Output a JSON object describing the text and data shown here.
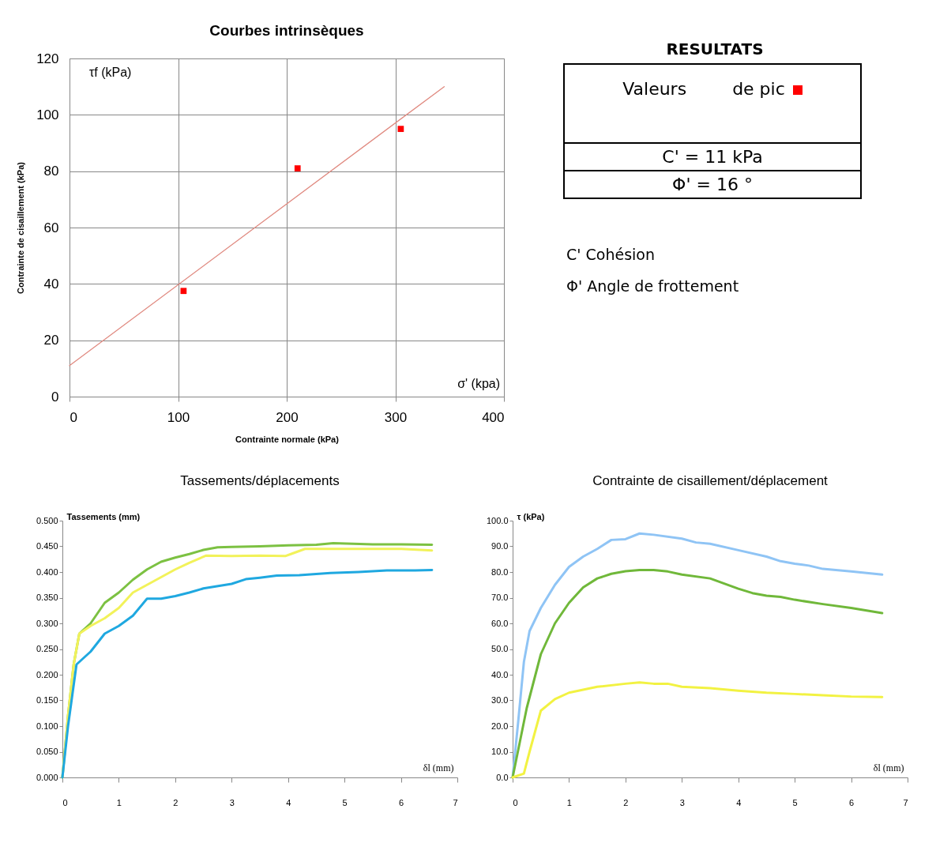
{
  "chart_data": [
    {
      "type": "scatter",
      "title": "Courbes intrinsèques",
      "xlabel": "Contrainte normale (kPa)",
      "ylabel": "Contrainte de cisaillement (kPa)",
      "annotations": [
        "τf (kPa)",
        "σ' (kpa)"
      ],
      "xlim": [
        0,
        400
      ],
      "ylim": [
        0,
        120
      ],
      "xticks": [
        0,
        100,
        200,
        300,
        400
      ],
      "yticks": [
        0,
        20,
        40,
        60,
        80,
        100,
        120
      ],
      "grid": true,
      "series": [
        {
          "type": "scatter",
          "marker": "square",
          "color": "#ff0000",
          "x": [
            105,
            210,
            305
          ],
          "values": [
            37.5,
            81,
            95
          ]
        },
        {
          "type": "line",
          "color": "#e08a80",
          "x": [
            0,
            345
          ],
          "values": [
            11,
            110
          ]
        }
      ]
    },
    {
      "type": "other",
      "title": "RESULTATS",
      "annotations": [
        "Valeurs",
        "de pic",
        "C' = 11 kPa",
        "Φ' = 16 °",
        "C' Cohésion",
        "Φ'  Angle de frottement"
      ]
    },
    {
      "type": "line",
      "title": "Tassements/déplacements",
      "xlabel": "δl (mm)",
      "ylabel": "Tassements (mm)",
      "xlim": [
        0,
        7
      ],
      "ylim": [
        0,
        0.5
      ],
      "xticks": [
        0,
        1,
        2,
        3,
        4,
        5,
        6,
        7
      ],
      "yticks": [
        {
          "value": 0,
          "label": "0.000"
        },
        {
          "value": 0.05,
          "label": "0.050"
        },
        {
          "value": 0.1,
          "label": "0.100"
        },
        {
          "value": 0.15,
          "label": "0.150"
        },
        {
          "value": 0.2,
          "label": "0.200"
        },
        {
          "value": 0.25,
          "label": "0.250"
        },
        {
          "value": 0.3,
          "label": "0.300"
        },
        {
          "value": 0.35,
          "label": "0.350"
        },
        {
          "value": 0.4,
          "label": "0.400"
        },
        {
          "value": 0.45,
          "label": "0.450"
        },
        {
          "value": 0.5,
          "label": "0.500"
        }
      ],
      "series": [
        {
          "color": "#7cc142",
          "x": [
            0,
            0.1,
            0.2,
            0.3,
            0.5,
            0.75,
            1,
            1.25,
            1.5,
            1.75,
            2,
            2.25,
            2.5,
            2.75,
            3,
            3.5,
            4,
            4.5,
            4.8,
            5.5,
            6,
            6.55
          ],
          "values": [
            0,
            0.12,
            0.22,
            0.28,
            0.3,
            0.34,
            0.36,
            0.385,
            0.405,
            0.42,
            0.428,
            0.435,
            0.443,
            0.448,
            0.449,
            0.45,
            0.452,
            0.453,
            0.456,
            0.454,
            0.454,
            0.453
          ]
        },
        {
          "color": "#f2f25a",
          "x": [
            0,
            0.1,
            0.2,
            0.3,
            0.5,
            0.75,
            1,
            1.25,
            1.5,
            1.75,
            2,
            2.25,
            2.55,
            3,
            3.5,
            3.95,
            4.05,
            4.3,
            5,
            6,
            6.55
          ],
          "values": [
            0,
            0.12,
            0.22,
            0.28,
            0.295,
            0.31,
            0.33,
            0.36,
            0.375,
            0.39,
            0.405,
            0.418,
            0.432,
            0.431,
            0.432,
            0.431,
            0.435,
            0.445,
            0.445,
            0.445,
            0.442
          ]
        },
        {
          "color": "#1fa8e0",
          "x": [
            0,
            0.1,
            0.25,
            0.5,
            0.75,
            1,
            1.25,
            1.5,
            1.75,
            2,
            2.25,
            2.5,
            3,
            3.25,
            3.5,
            3.8,
            4.2,
            4.75,
            5.25,
            5.75,
            6.25,
            6.55
          ],
          "values": [
            0,
            0.1,
            0.22,
            0.245,
            0.28,
            0.295,
            0.315,
            0.348,
            0.348,
            0.353,
            0.36,
            0.368,
            0.377,
            0.386,
            0.389,
            0.393,
            0.394,
            0.398,
            0.4,
            0.403,
            0.403,
            0.404
          ]
        }
      ]
    },
    {
      "type": "line",
      "title": "Contrainte de cisaillement/déplacement",
      "xlabel": "δl (mm)",
      "ylabel": "τ (kPa)",
      "xlim": [
        0,
        7
      ],
      "ylim": [
        0,
        100
      ],
      "xticks": [
        0,
        1,
        2,
        3,
        4,
        5,
        6,
        7
      ],
      "yticks": [
        {
          "value": 0,
          "label": "0.0"
        },
        {
          "value": 10,
          "label": "10.0"
        },
        {
          "value": 20,
          "label": "20.0"
        },
        {
          "value": 30,
          "label": "30.0"
        },
        {
          "value": 40,
          "label": "40.0"
        },
        {
          "value": 50,
          "label": "50.0"
        },
        {
          "value": 60,
          "label": "60.0"
        },
        {
          "value": 70,
          "label": "70.0"
        },
        {
          "value": 80,
          "label": "80.0"
        },
        {
          "value": 90,
          "label": "90.0"
        },
        {
          "value": 100,
          "label": "100.0"
        }
      ],
      "series": [
        {
          "color": "#8fc4f5",
          "x": [
            0,
            0.1,
            0.2,
            0.3,
            0.5,
            0.75,
            1,
            1.25,
            1.5,
            1.75,
            2,
            2.25,
            2.5,
            3,
            3.25,
            3.5,
            4,
            4.5,
            4.75,
            5,
            5.25,
            5.5,
            6,
            6.55
          ],
          "values": [
            0,
            22,
            45,
            57,
            66,
            75,
            82,
            86,
            89,
            92.5,
            92.8,
            95,
            94.5,
            93,
            91.5,
            91,
            88.5,
            86,
            84.2,
            83.2,
            82.5,
            81.2,
            80.2,
            79
          ]
        },
        {
          "color": "#70b83a",
          "x": [
            0,
            0.25,
            0.5,
            0.75,
            1,
            1.25,
            1.5,
            1.75,
            2,
            2.25,
            2.5,
            2.75,
            3,
            3.5,
            4,
            4.25,
            4.5,
            4.75,
            5,
            5.5,
            6,
            6.55
          ],
          "values": [
            0,
            27,
            48,
            60,
            68,
            74,
            77.5,
            79.3,
            80.3,
            80.8,
            80.8,
            80.2,
            79,
            77.5,
            73.5,
            71.8,
            70.8,
            70.3,
            69.2,
            67.5,
            66,
            64
          ]
        },
        {
          "color": "#f2f242",
          "x": [
            0,
            0.2,
            0.3,
            0.5,
            0.75,
            1,
            1.5,
            2,
            2.25,
            2.5,
            2.75,
            3,
            3.5,
            4,
            4.5,
            5,
            5.5,
            6,
            6.55
          ],
          "values": [
            0,
            1.5,
            10,
            26,
            30.5,
            33,
            35.3,
            36.5,
            37,
            36.5,
            36.5,
            35.3,
            34.8,
            33.8,
            33,
            32.5,
            32,
            31.5,
            31.3
          ]
        }
      ]
    }
  ]
}
